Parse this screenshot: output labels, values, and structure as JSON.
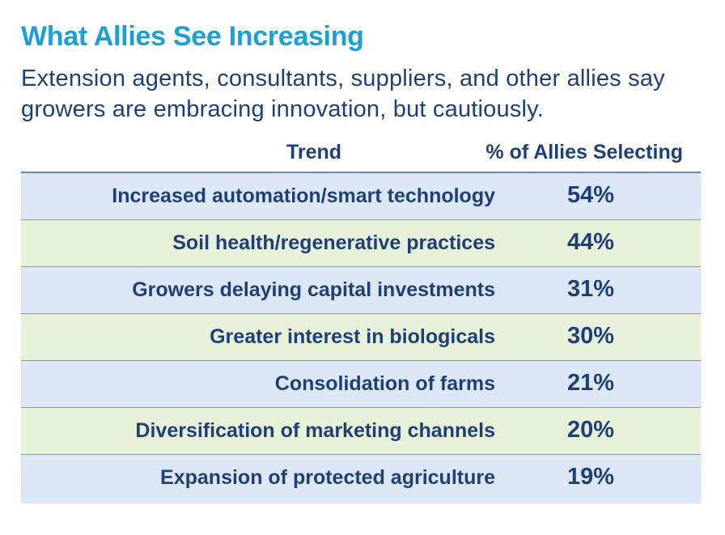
{
  "header": {
    "title": "What Allies See Increasing",
    "subtitle": "Extension agents, consultants, suppliers, and other allies say growers are embracing innovation, but cautiously."
  },
  "table": {
    "columns": [
      "Trend",
      "% of Allies Selecting"
    ],
    "rows": [
      {
        "trend": "Increased automation/smart technology",
        "value": "54%"
      },
      {
        "trend": "Soil health/regenerative practices",
        "value": "44%"
      },
      {
        "trend": "Growers delaying capital investments",
        "value": "31%"
      },
      {
        "trend": "Greater interest in biologicals",
        "value": "30%"
      },
      {
        "trend": "Consolidation of farms",
        "value": "21%"
      },
      {
        "trend": "Diversification of marketing channels",
        "value": "20%"
      },
      {
        "trend": "Expansion of protected agriculture",
        "value": "19%"
      }
    ]
  },
  "colors": {
    "title": "#1aa0d4",
    "text": "#1f3f7a",
    "row_blue": "#dce8f5",
    "row_green": "#e7f0d8"
  },
  "chart_data": {
    "type": "table",
    "title": "What Allies See Increasing",
    "subtitle": "Extension agents, consultants, suppliers, and other allies say growers are embracing innovation, but cautiously.",
    "columns": [
      "Trend",
      "% of Allies Selecting"
    ],
    "categories": [
      "Increased automation/smart technology",
      "Soil health/regenerative practices",
      "Growers delaying capital investments",
      "Greater interest in biologicals",
      "Consolidation of farms",
      "Diversification of marketing channels",
      "Expansion of protected agriculture"
    ],
    "values": [
      54,
      44,
      31,
      30,
      21,
      20,
      19
    ]
  }
}
